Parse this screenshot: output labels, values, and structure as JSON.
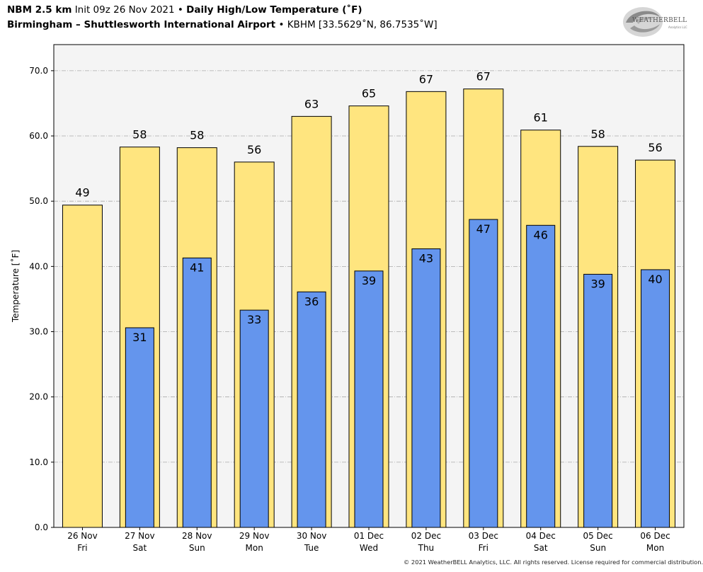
{
  "header": {
    "model": "NBM 2.5 km",
    "init": "Init 09z 26 Nov 2021",
    "bullet": "•",
    "product": "Daily High/Low Temperature (˚F)",
    "station_name": "Birmingham – Shuttlesworth International Airport",
    "station_info": "KBHM [33.5629˚N, 86.7535˚W]"
  },
  "logo": {
    "text": "WEATHERBELL",
    "sub": "Analytics LLC",
    "icon": "weatherbell-swirl-logo"
  },
  "footer": {
    "copyright": "© 2021 WeatherBELL Analytics, LLC. All rights reserved. License required for commercial distribution."
  },
  "colors": {
    "high_bar": "#FFE57F",
    "low_bar": "#6495ED",
    "plot_bg": "#F4F4F4",
    "grid": "#AAAAAA"
  },
  "chart_data": {
    "type": "bar",
    "title": "Daily High/Low Temperature (˚F)",
    "xlabel": "",
    "ylabel": "Temperature [˚F]",
    "ylim": [
      0,
      74
    ],
    "yticks": [
      0,
      10,
      20,
      30,
      40,
      50,
      60,
      70
    ],
    "ytick_labels": [
      "0.0",
      "10.0",
      "20.0",
      "30.0",
      "40.0",
      "50.0",
      "60.0",
      "70.0"
    ],
    "grid": true,
    "categories": [
      [
        "26 Nov",
        "Fri"
      ],
      [
        "27 Nov",
        "Sat"
      ],
      [
        "28 Nov",
        "Sun"
      ],
      [
        "29 Nov",
        "Mon"
      ],
      [
        "30 Nov",
        "Tue"
      ],
      [
        "01 Dec",
        "Wed"
      ],
      [
        "02 Dec",
        "Thu"
      ],
      [
        "03 Dec",
        "Fri"
      ],
      [
        "04 Dec",
        "Sat"
      ],
      [
        "05 Dec",
        "Sun"
      ],
      [
        "06 Dec",
        "Mon"
      ]
    ],
    "series": [
      {
        "values": [
          49.4,
          58.3,
          58.2,
          56.0,
          63.0,
          64.6,
          66.8,
          67.2,
          60.9,
          58.4,
          56.3
        ],
        "labels": [
          "49",
          "58",
          "58",
          "56",
          "63",
          "65",
          "67",
          "67",
          "61",
          "58",
          "56"
        ]
      },
      {
        "values": [
          null,
          30.6,
          41.3,
          33.3,
          36.1,
          39.3,
          42.7,
          47.2,
          46.3,
          38.8,
          39.5
        ],
        "labels": [
          null,
          "31",
          "41",
          "33",
          "36",
          "39",
          "43",
          "47",
          "46",
          "39",
          "40"
        ]
      }
    ]
  }
}
